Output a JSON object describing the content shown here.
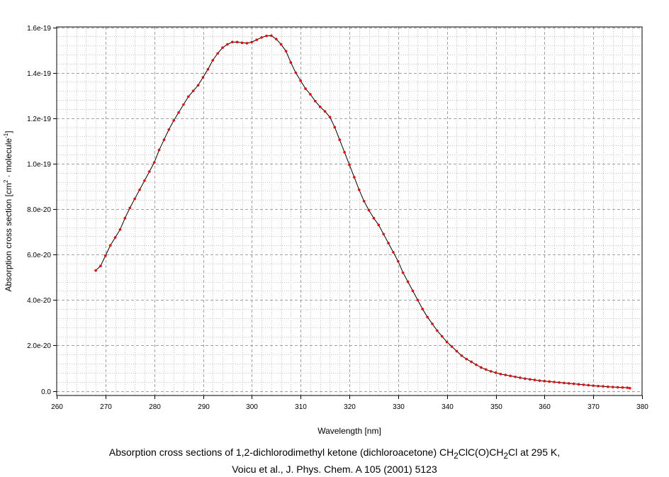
{
  "caption": {
    "line1_prefix": "Absorption cross sections of 1,2-dichlorodimethyl ketone (dichloroacetone) CH",
    "line1_sub1": "2",
    "line1_mid": "ClC(O)CH",
    "line1_sub2": "2",
    "line1_suffix": "Cl at 295 K,",
    "line2": "Voicu et al., J. Phys. Chem. A 105 (2001) 5123"
  },
  "chart_data": {
    "type": "line",
    "xlabel": "Wavelength [nm]",
    "ylabel": {
      "prefix": "Absorption cross section [cm",
      "sup1": "2",
      "middle": " · molecule",
      "sup2": "-1",
      "suffix": "]"
    },
    "xlim": [
      260,
      380
    ],
    "ylim": [
      -1e-21,
      1.6e-19
    ],
    "x_ticks": [
      260,
      270,
      280,
      290,
      300,
      310,
      320,
      330,
      340,
      350,
      360,
      370,
      380
    ],
    "x_tick_labels": [
      "260",
      "270",
      "280",
      "290",
      "300",
      "310",
      "320",
      "330",
      "340",
      "350",
      "360",
      "370",
      "380"
    ],
    "y_ticks": [
      0,
      2e-20,
      4e-20,
      6e-20,
      8e-20,
      1e-19,
      1.2e-19,
      1.4e-19,
      1.6e-19
    ],
    "y_tick_labels": [
      "0.0",
      "2.0e-20",
      "4.0e-20",
      "6.0e-20",
      "8.0e-20",
      "1.0e-19",
      "1.2e-19",
      "1.4e-19",
      "1.6e-19"
    ],
    "grid": true,
    "line_color": "#000000",
    "marker_color": "#ff0000",
    "series": [
      {
        "x": [
          268.0,
          269.0,
          270.0,
          271.0,
          272.0,
          273.0,
          274.0,
          275.0,
          276.0,
          277.0,
          278.0,
          279.0,
          280.0,
          281.0,
          282.0,
          283.0,
          284.0,
          285.0,
          286.0,
          287.0,
          288.0,
          289.0,
          290.0,
          291.0,
          292.0,
          293.0,
          294.0,
          295.0,
          296.0,
          297.0,
          298.0,
          299.0,
          300.0,
          301.0,
          302.0,
          303.0,
          304.0,
          305.0,
          306.0,
          307.0,
          308.0,
          309.0,
          310.0,
          311.0,
          312.0,
          313.0,
          314.0,
          315.0,
          316.0,
          317.0,
          318.0,
          319.0,
          320.0,
          321.0,
          322.0,
          323.0,
          324.0,
          325.0,
          326.0,
          327.0,
          328.0,
          329.0,
          330.0,
          331.0,
          332.0,
          333.0,
          334.0,
          335.0,
          336.0,
          337.0,
          338.0,
          339.0,
          340.0,
          341.0,
          342.0,
          343.0,
          344.0,
          345.0,
          346.0,
          347.0,
          348.0,
          349.0,
          350.0,
          351.0,
          352.0,
          353.0,
          354.0,
          355.0,
          356.0,
          357.0,
          358.0,
          359.0,
          360.0,
          361.0,
          362.0,
          363.0,
          364.0,
          365.0,
          366.0,
          367.0,
          368.0,
          369.0,
          370.0,
          371.0,
          372.0,
          373.0,
          374.0,
          375.0,
          376.0,
          377.0,
          377.5
        ],
        "y": [
          5.3e-20,
          5.5e-20,
          5.95e-20,
          6.4e-20,
          6.75e-20,
          7.1e-20,
          7.6e-20,
          8.05e-20,
          8.45e-20,
          8.85e-20,
          9.25e-20,
          9.65e-20,
          1.005e-19,
          1.06e-19,
          1.105e-19,
          1.15e-19,
          1.19e-19,
          1.225e-19,
          1.26e-19,
          1.295e-19,
          1.32e-19,
          1.345e-19,
          1.38e-19,
          1.415e-19,
          1.455e-19,
          1.485e-19,
          1.51e-19,
          1.525e-19,
          1.535e-19,
          1.535e-19,
          1.532e-19,
          1.53e-19,
          1.535e-19,
          1.545e-19,
          1.555e-19,
          1.562e-19,
          1.563e-19,
          1.548e-19,
          1.525e-19,
          1.495e-19,
          1.445e-19,
          1.4e-19,
          1.365e-19,
          1.33e-19,
          1.305e-19,
          1.275e-19,
          1.25e-19,
          1.23e-19,
          1.205e-19,
          1.16e-19,
          1.105e-19,
          1.05e-19,
          9.95e-20,
          9.4e-20,
          8.85e-20,
          8.35e-20,
          7.95e-20,
          7.6e-20,
          7.3e-20,
          6.9e-20,
          6.5e-20,
          6.1e-20,
          5.7e-20,
          5.2e-20,
          4.8e-20,
          4.4e-20,
          4e-20,
          3.6e-20,
          3.25e-20,
          2.95e-20,
          2.65e-20,
          2.4e-20,
          2.15e-20,
          1.95e-20,
          1.75e-20,
          1.55e-20,
          1.4e-20,
          1.28e-20,
          1.15e-20,
          1.03e-20,
          9.4e-21,
          8.6e-21,
          8e-21,
          7.4e-21,
          7e-21,
          6.6e-21,
          6.2e-21,
          5.8e-21,
          5.4e-21,
          5.1e-21,
          4.8e-21,
          4.5e-21,
          4.3e-21,
          4.1e-21,
          3.9e-21,
          3.7e-21,
          3.5e-21,
          3.3e-21,
          3.1e-21,
          2.9e-21,
          2.7e-21,
          2.5e-21,
          2.3e-21,
          2.1e-21,
          2e-21,
          1.8e-21,
          1.7e-21,
          1.6e-21,
          1.5e-21,
          1.4e-21,
          1.2e-21
        ]
      }
    ]
  }
}
